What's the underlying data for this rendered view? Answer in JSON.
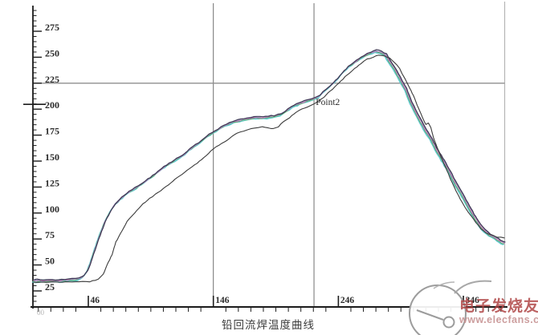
{
  "page": {
    "caption": "铅回流焊温度曲线",
    "origin_label": "00"
  },
  "watermark": {
    "brand": "电子发烧友",
    "url": "www.elecfans.com",
    "brand_color": "#ac3e3e",
    "url_color": "#c79292"
  },
  "colors": {
    "axis": "#1c1c1c",
    "hline": "#8f8f8f",
    "cursor_line": "#6f6f6f",
    "right_border": "#b5b5b5"
  },
  "chart_data": {
    "type": "line",
    "title": "铅回流焊温度曲线",
    "xlabel": "",
    "ylabel": "",
    "x_ticks": [
      46,
      146,
      246,
      346
    ],
    "y_ticks": [
      25,
      50,
      75,
      100,
      125,
      150,
      175,
      200,
      225,
      250,
      275
    ],
    "xlim": [
      2,
      379
    ],
    "ylim": [
      10,
      290
    ],
    "grid": "off",
    "hlines": [
      225
    ],
    "vlines": [
      146,
      226.5
    ],
    "left_marker_temp": 200,
    "annotations": [
      {
        "label": "Point2",
        "t": 226,
        "temp": 210
      }
    ],
    "series": [
      {
        "name": "profile-bundle",
        "style": "bundle",
        "colors": [
          "#62c9cf",
          "#5aa86a",
          "#c973b9",
          "#9b94c0",
          "#3a3550"
        ],
        "points": [
          [
            2,
            35
          ],
          [
            24,
            35
          ],
          [
            38,
            36.5
          ],
          [
            42,
            39
          ],
          [
            45,
            43.5
          ],
          [
            48,
            53
          ],
          [
            51,
            64
          ],
          [
            55,
            78
          ],
          [
            59,
            91
          ],
          [
            63,
            100
          ],
          [
            67,
            108
          ],
          [
            72,
            114
          ],
          [
            78,
            120
          ],
          [
            85,
            125
          ],
          [
            91,
            130
          ],
          [
            99,
            137
          ],
          [
            106,
            144
          ],
          [
            114,
            150
          ],
          [
            122,
            156
          ],
          [
            129,
            163
          ],
          [
            136,
            169
          ],
          [
            142,
            175
          ],
          [
            149,
            180
          ],
          [
            156,
            185
          ],
          [
            163,
            188
          ],
          [
            170,
            190
          ],
          [
            178,
            192
          ],
          [
            185,
            192
          ],
          [
            194,
            193
          ],
          [
            200,
            195
          ],
          [
            205,
            199
          ],
          [
            210,
            203
          ],
          [
            216,
            206
          ],
          [
            221,
            208
          ],
          [
            226,
            210
          ],
          [
            231,
            213
          ],
          [
            235,
            218
          ],
          [
            240,
            223
          ],
          [
            245,
            229
          ],
          [
            250,
            236
          ],
          [
            255,
            242
          ],
          [
            260,
            246
          ],
          [
            266,
            251
          ],
          [
            271,
            254
          ],
          [
            276,
            256
          ],
          [
            280,
            255
          ],
          [
            284,
            252
          ],
          [
            287,
            246
          ],
          [
            291,
            239
          ],
          [
            295,
            230
          ],
          [
            300,
            219
          ],
          [
            304,
            207
          ],
          [
            308,
            197
          ],
          [
            312,
            188
          ],
          [
            316,
            179
          ],
          [
            320,
            172
          ],
          [
            324,
            162
          ],
          [
            329,
            152
          ],
          [
            334,
            142
          ],
          [
            339,
            130
          ],
          [
            344,
            120
          ],
          [
            349,
            109
          ],
          [
            354,
            98
          ],
          [
            359,
            89
          ],
          [
            363,
            83
          ],
          [
            367,
            79
          ],
          [
            372,
            76
          ],
          [
            375,
            73
          ],
          [
            379,
            71
          ]
        ]
      },
      {
        "name": "reference-profile",
        "style": "single",
        "colors": [
          "#3b3b3b"
        ],
        "points": [
          [
            2,
            33.5
          ],
          [
            33,
            33.5
          ],
          [
            47,
            34
          ],
          [
            54,
            36
          ],
          [
            58,
            41
          ],
          [
            61,
            50
          ],
          [
            65,
            60
          ],
          [
            68,
            72
          ],
          [
            73,
            83
          ],
          [
            77,
            92
          ],
          [
            83,
            100
          ],
          [
            88,
            107
          ],
          [
            95,
            114
          ],
          [
            102,
            120
          ],
          [
            110,
            127
          ],
          [
            117,
            134
          ],
          [
            125,
            141
          ],
          [
            133,
            148
          ],
          [
            140,
            155
          ],
          [
            146,
            162
          ],
          [
            153,
            167
          ],
          [
            159,
            172
          ],
          [
            165,
            177
          ],
          [
            173,
            180
          ],
          [
            179,
            182
          ],
          [
            185,
            183
          ],
          [
            190,
            182
          ],
          [
            194,
            181
          ],
          [
            198,
            183
          ],
          [
            202,
            188
          ],
          [
            207,
            192
          ],
          [
            212,
            197
          ],
          [
            217,
            200
          ],
          [
            223,
            203
          ],
          [
            228,
            206
          ],
          [
            233,
            210
          ],
          [
            238,
            216
          ],
          [
            243,
            221
          ],
          [
            248,
            227
          ],
          [
            253,
            233
          ],
          [
            259,
            239
          ],
          [
            264,
            244
          ],
          [
            269,
            248
          ],
          [
            274,
            250
          ],
          [
            278,
            252
          ],
          [
            283,
            251
          ],
          [
            287,
            249
          ],
          [
            291,
            245
          ],
          [
            295,
            239
          ],
          [
            298,
            232
          ],
          [
            302,
            223
          ],
          [
            306,
            213
          ],
          [
            309,
            204
          ],
          [
            312,
            196
          ],
          [
            314,
            190
          ],
          [
            316,
            185
          ],
          [
            318,
            187
          ],
          [
            320,
            182
          ],
          [
            322,
            173
          ],
          [
            326,
            160
          ],
          [
            331,
            146
          ],
          [
            336,
            132
          ],
          [
            341,
            119
          ],
          [
            346,
            108
          ],
          [
            351,
            99
          ],
          [
            356,
            91
          ],
          [
            360,
            85
          ],
          [
            364,
            81
          ],
          [
            368,
            79
          ],
          [
            373,
            77
          ],
          [
            379,
            76
          ]
        ]
      }
    ]
  }
}
